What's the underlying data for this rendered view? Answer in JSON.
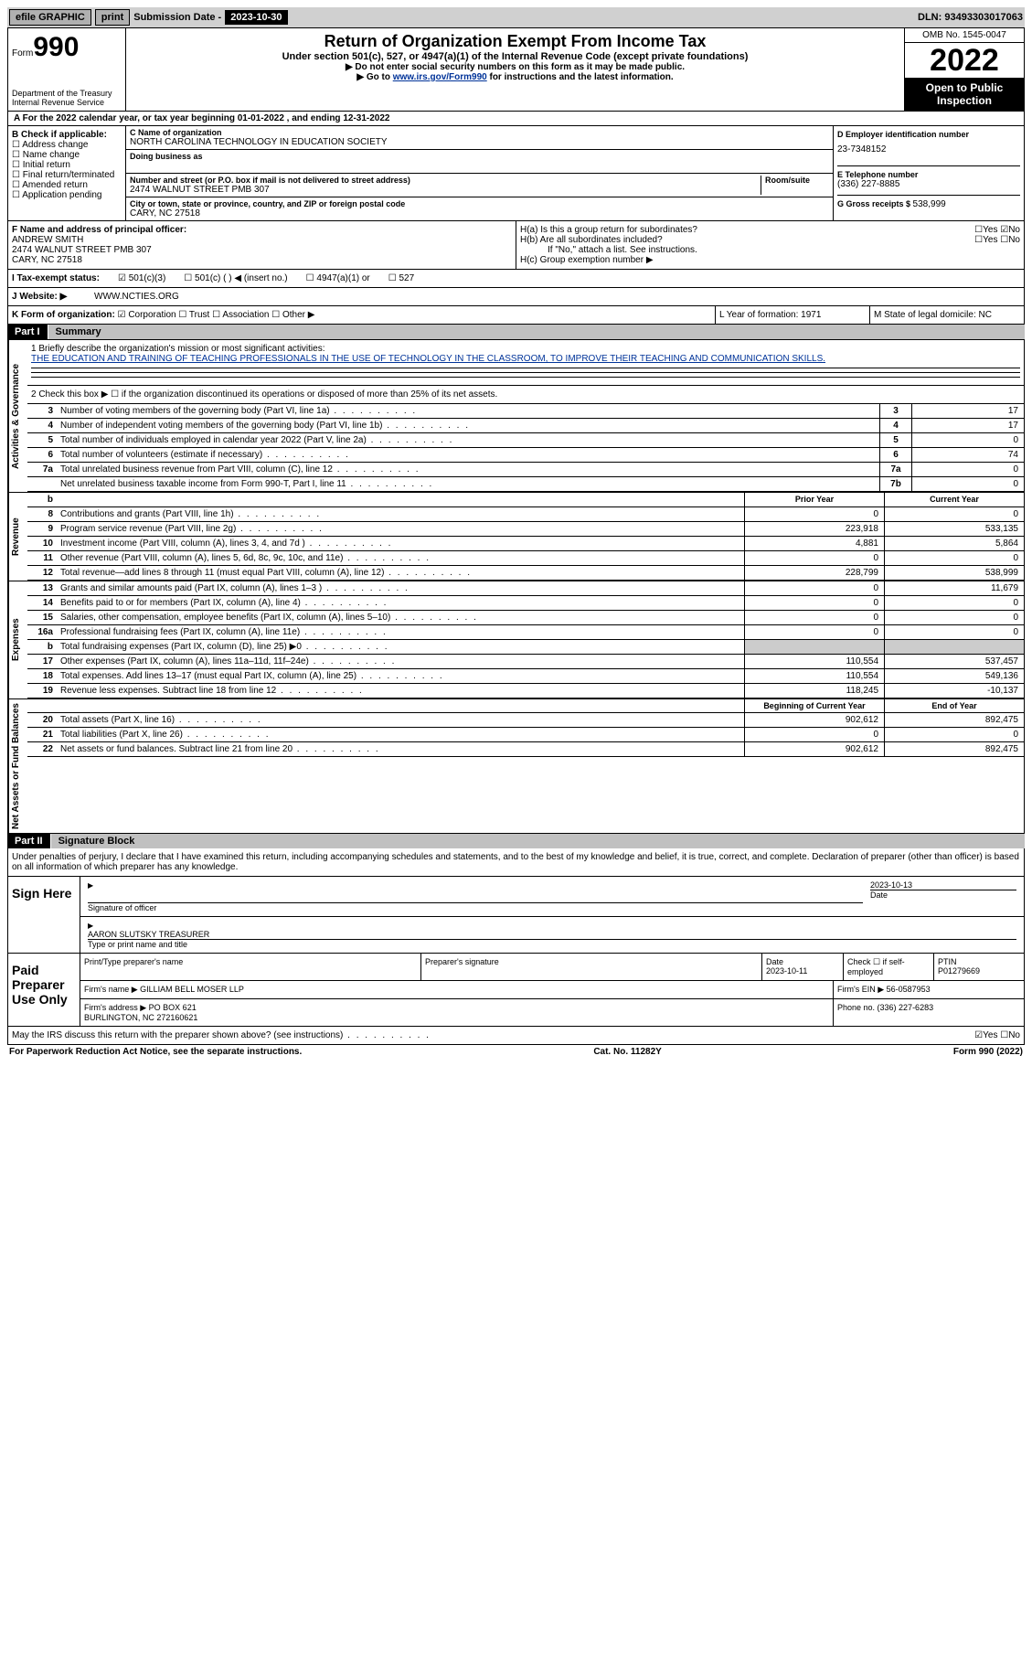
{
  "topbar": {
    "efile": "efile GRAPHIC",
    "print": "print",
    "subdate_lbl": "Submission Date - ",
    "subdate_val": "2023-10-30",
    "dln": "DLN: 93493303017063"
  },
  "header": {
    "form_sm": "Form",
    "form_lg": "990",
    "dept": "Department of the Treasury\nInternal Revenue Service",
    "title": "Return of Organization Exempt From Income Tax",
    "sub1": "Under section 501(c), 527, or 4947(a)(1) of the Internal Revenue Code (except private foundations)",
    "sub2": "▶ Do not enter social security numbers on this form as it may be made public.",
    "sub3_pre": "▶ Go to ",
    "sub3_link": "www.irs.gov/Form990",
    "sub3_post": " for instructions and the latest information.",
    "omb": "OMB No. 1545-0047",
    "year": "2022",
    "otp": "Open to Public Inspection"
  },
  "rowA": "A For the 2022 calendar year, or tax year beginning 01-01-2022   , and ending 12-31-2022",
  "colB": {
    "hdr": "B Check if applicable:",
    "items": [
      "Address change",
      "Name change",
      "Initial return",
      "Final return/terminated",
      "Amended return",
      "Application pending"
    ]
  },
  "boxC": {
    "lbl": "C Name of organization",
    "name": "NORTH CAROLINA TECHNOLOGY IN EDUCATION SOCIETY",
    "dba_lbl": "Doing business as",
    "addr_lbl": "Number and street (or P.O. box if mail is not delivered to street address)",
    "room_lbl": "Room/suite",
    "addr": "2474 WALNUT STREET PMB 307",
    "city_lbl": "City or town, state or province, country, and ZIP or foreign postal code",
    "city": "CARY, NC  27518"
  },
  "colD": {
    "d_lbl": "D Employer identification number",
    "d_val": "23-7348152",
    "e_lbl": "E Telephone number",
    "e_val": "(336) 227-8885",
    "g_lbl": "G Gross receipts $ ",
    "g_val": "538,999"
  },
  "rowF": {
    "lbl": "F Name and address of principal officer:",
    "name": "ANDREW SMITH",
    "addr": "2474 WALNUT STREET PMB 307\nCARY, NC  27518"
  },
  "rowH": {
    "ha": "H(a)  Is this a group return for subordinates?",
    "hb": "H(b)  Are all subordinates included?",
    "hb2": "If \"No,\" attach a list. See instructions.",
    "hc": "H(c)  Group exemption number ▶",
    "yes": "Yes",
    "no": "No"
  },
  "rowI": {
    "lbl": "I   Tax-exempt status:",
    "o1": "501(c)(3)",
    "o2": "501(c) (  ) ◀ (insert no.)",
    "o3": "4947(a)(1) or",
    "o4": "527"
  },
  "rowJ": {
    "lbl": "J   Website: ▶",
    "val": "WWW.NCTIES.ORG"
  },
  "rowK": "K Form of organization:",
  "rowK_opts": [
    "Corporation",
    "Trust",
    "Association",
    "Other ▶"
  ],
  "rowL": "L Year of formation: 1971",
  "rowM": "M State of legal domicile: NC",
  "part1": {
    "num": "Part I",
    "title": "Summary"
  },
  "mission": {
    "lbl": "1  Briefly describe the organization's mission or most significant activities:",
    "txt": "THE EDUCATION AND TRAINING OF TEACHING PROFESSIONALS IN THE USE OF TECHNOLOGY IN THE CLASSROOM, TO IMPROVE THEIR TEACHING AND COMMUNICATION SKILLS."
  },
  "gov": {
    "l2": "2   Check this box ▶ ☐  if the organization discontinued its operations or disposed of more than 25% of its net assets.",
    "rows": [
      {
        "n": "3",
        "d": "Number of voting members of the governing body (Part VI, line 1a)",
        "b": "3",
        "v": "17"
      },
      {
        "n": "4",
        "d": "Number of independent voting members of the governing body (Part VI, line 1b)",
        "b": "4",
        "v": "17"
      },
      {
        "n": "5",
        "d": "Total number of individuals employed in calendar year 2022 (Part V, line 2a)",
        "b": "5",
        "v": "0"
      },
      {
        "n": "6",
        "d": "Total number of volunteers (estimate if necessary)",
        "b": "6",
        "v": "74"
      },
      {
        "n": "7a",
        "d": "Total unrelated business revenue from Part VIII, column (C), line 12",
        "b": "7a",
        "v": "0"
      },
      {
        "n": "",
        "d": "Net unrelated business taxable income from Form 990-T, Part I, line 11",
        "b": "7b",
        "v": "0"
      }
    ]
  },
  "rev": {
    "hdr_p": "Prior Year",
    "hdr_c": "Current Year",
    "hdr_n": "b",
    "rows": [
      {
        "n": "8",
        "d": "Contributions and grants (Part VIII, line 1h)",
        "p": "0",
        "c": "0"
      },
      {
        "n": "9",
        "d": "Program service revenue (Part VIII, line 2g)",
        "p": "223,918",
        "c": "533,135"
      },
      {
        "n": "10",
        "d": "Investment income (Part VIII, column (A), lines 3, 4, and 7d )",
        "p": "4,881",
        "c": "5,864"
      },
      {
        "n": "11",
        "d": "Other revenue (Part VIII, column (A), lines 5, 6d, 8c, 9c, 10c, and 11e)",
        "p": "0",
        "c": "0"
      },
      {
        "n": "12",
        "d": "Total revenue—add lines 8 through 11 (must equal Part VIII, column (A), line 12)",
        "p": "228,799",
        "c": "538,999"
      }
    ]
  },
  "exp": {
    "rows": [
      {
        "n": "13",
        "d": "Grants and similar amounts paid (Part IX, column (A), lines 1–3 )",
        "p": "0",
        "c": "11,679"
      },
      {
        "n": "14",
        "d": "Benefits paid to or for members (Part IX, column (A), line 4)",
        "p": "0",
        "c": "0"
      },
      {
        "n": "15",
        "d": "Salaries, other compensation, employee benefits (Part IX, column (A), lines 5–10)",
        "p": "0",
        "c": "0"
      },
      {
        "n": "16a",
        "d": "Professional fundraising fees (Part IX, column (A), line 11e)",
        "p": "0",
        "c": "0"
      },
      {
        "n": "b",
        "d": "Total fundraising expenses (Part IX, column (D), line 25) ▶0",
        "p": "",
        "c": "",
        "gray": true
      },
      {
        "n": "17",
        "d": "Other expenses (Part IX, column (A), lines 11a–11d, 11f–24e)",
        "p": "110,554",
        "c": "537,457"
      },
      {
        "n": "18",
        "d": "Total expenses. Add lines 13–17 (must equal Part IX, column (A), line 25)",
        "p": "110,554",
        "c": "549,136"
      },
      {
        "n": "19",
        "d": "Revenue less expenses. Subtract line 18 from line 12",
        "p": "118,245",
        "c": "-10,137"
      }
    ]
  },
  "na": {
    "hdr_p": "Beginning of Current Year",
    "hdr_c": "End of Year",
    "rows": [
      {
        "n": "20",
        "d": "Total assets (Part X, line 16)",
        "p": "902,612",
        "c": "892,475"
      },
      {
        "n": "21",
        "d": "Total liabilities (Part X, line 26)",
        "p": "0",
        "c": "0"
      },
      {
        "n": "22",
        "d": "Net assets or fund balances. Subtract line 21 from line 20",
        "p": "902,612",
        "c": "892,475"
      }
    ]
  },
  "side": {
    "ag": "Activities & Governance",
    "rev": "Revenue",
    "exp": "Expenses",
    "na": "Net Assets or Fund Balances"
  },
  "part2": {
    "num": "Part II",
    "title": "Signature Block"
  },
  "decl": "Under penalties of perjury, I declare that I have examined this return, including accompanying schedules and statements, and to the best of my knowledge and belief, it is true, correct, and complete. Declaration of preparer (other than officer) is based on all information of which preparer has any knowledge.",
  "sign": {
    "here": "Sign Here",
    "sig_lbl": "Signature of officer",
    "date_lbl": "Date",
    "date": "2023-10-13",
    "name_lbl": "Type or print name and title",
    "name": "AARON SLUTSKY TREASURER"
  },
  "prep": {
    "here": "Paid Preparer Use Only",
    "r1_c1": "Print/Type preparer's name",
    "r1_c2": "Preparer's signature",
    "r1_c3": "Date\n2023-10-11",
    "r1_c4_lbl": "Check ☐ if self-employed",
    "r1_c5": "PTIN\nP01279669",
    "r2_lbl": "Firm's name     ▶",
    "r2_val": "GILLIAM BELL MOSER LLP",
    "r2_ein": "Firm's EIN ▶ 56-0587953",
    "r3_lbl": "Firm's address ▶",
    "r3_val": "PO BOX 621\nBURLINGTON, NC  272160621",
    "r3_ph": "Phone no. (336) 227-6283"
  },
  "bottom": {
    "q": "May the IRS discuss this return with the preparer shown above? (see instructions)",
    "yes": "Yes",
    "no": "No"
  },
  "footer": {
    "l": "For Paperwork Reduction Act Notice, see the separate instructions.",
    "c": "Cat. No. 11282Y",
    "r": "Form 990 (2022)"
  }
}
